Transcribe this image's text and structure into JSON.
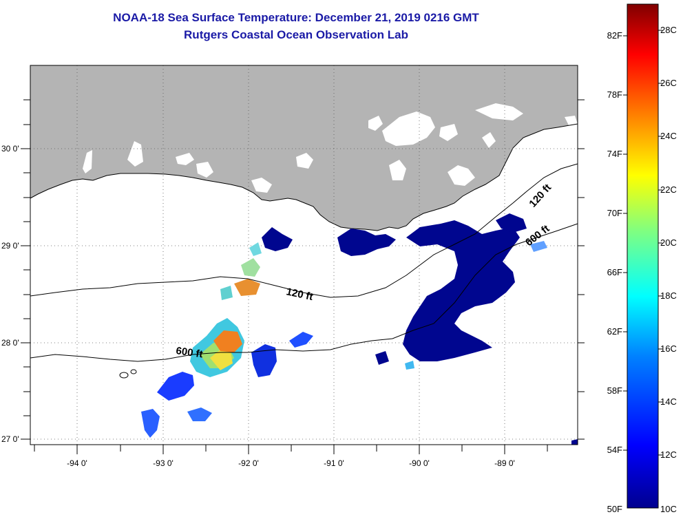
{
  "header": {
    "title": "NOAA-18 Sea Surface Temperature:  December 21, 2019 0216 GMT",
    "subtitle": "Rutgers Coastal Ocean Observation Lab"
  },
  "map": {
    "lat_labels": [
      "30 0'",
      "29 0'",
      "28 0'",
      "27 0'"
    ],
    "lon_labels": [
      "-94 0'",
      "-93 0'",
      "-92 0'",
      "-91 0'",
      "-90 0'",
      "-89 0'"
    ],
    "contours": [
      {
        "label": "120 ft"
      },
      {
        "label": "120 ft"
      },
      {
        "label": "600 ft"
      },
      {
        "label": "600 ft"
      }
    ]
  },
  "colorbar": {
    "fahrenheit": [
      "82F",
      "78F",
      "74F",
      "70F",
      "66F",
      "62F",
      "58F",
      "54F",
      "50F"
    ],
    "celsius": [
      "28C",
      "26C",
      "24C",
      "22C",
      "20C",
      "18C",
      "16C",
      "14C",
      "12C",
      "10C"
    ],
    "colors": [
      "#00008f",
      "#0000ff",
      "#0080ff",
      "#00ffff",
      "#80ff80",
      "#ffff00",
      "#ff8000",
      "#ff0000",
      "#800000"
    ]
  },
  "colors": {
    "land": "#b4b4b4",
    "title": "#1a1aa6",
    "cold_water": "#00068f"
  }
}
